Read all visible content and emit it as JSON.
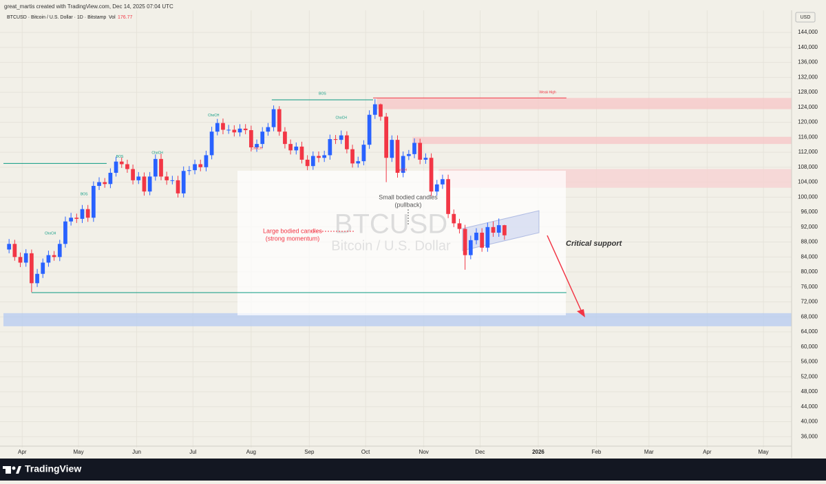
{
  "header": {
    "credit": "great_martis created with TradingView.com, Dec 14, 2025 07:04 UTC",
    "symbol": "BTCUSD · Bitcoin / U.S. Dollar · 1D · Bitstamp",
    "vol_label": "Vol",
    "vol_value": 176.77,
    "currency": "USD"
  },
  "footer": {
    "brand": "TradingView"
  },
  "chart_data": {
    "type": "candlestick",
    "watermark": [
      "BTCUSD",
      "Bitcoin / U.S. Dollar"
    ],
    "up_color": "#2962ff",
    "down_color": "#f23645",
    "x": [
      3,
      6,
      9,
      12,
      15,
      18,
      21,
      24,
      27,
      30,
      33,
      36,
      39,
      42,
      45,
      48,
      51,
      54,
      57,
      60,
      63,
      66,
      69,
      72,
      75,
      78,
      81,
      84,
      87,
      90,
      93,
      96,
      99,
      102,
      105,
      108,
      111,
      114,
      117,
      120,
      123,
      126,
      129,
      132,
      135,
      138,
      141,
      144,
      147,
      150,
      153,
      156,
      159,
      162,
      165,
      168,
      171,
      174,
      177,
      180,
      183,
      186,
      189,
      192,
      195,
      198,
      201,
      204,
      207,
      210,
      213,
      216,
      219,
      222,
      225,
      228,
      231,
      234,
      237,
      240,
      243,
      246,
      249,
      252,
      255,
      258,
      261,
      264,
      267
    ],
    "open": [
      86000,
      87500,
      84000,
      82500,
      85000,
      77000,
      79500,
      82500,
      84500,
      84000,
      87500,
      93500,
      94500,
      94200,
      96800,
      94500,
      103000,
      104000,
      103500,
      106500,
      109500,
      108800,
      107500,
      104500,
      105500,
      101500,
      105500,
      110200,
      105500,
      104500,
      104500,
      101000,
      107000,
      107200,
      108800,
      108000,
      111200,
      117500,
      119800,
      118000,
      118000,
      117300,
      118300,
      117900,
      113300,
      114200,
      117500,
      118700,
      123500,
      117500,
      114200,
      112500,
      113500,
      110000,
      108300,
      111000,
      110500,
      111200,
      115500,
      115300,
      116500,
      112800,
      109000,
      109600,
      114000,
      122000,
      124800,
      121500,
      110500,
      115300,
      106500,
      111000,
      111500,
      114500,
      110000,
      110500,
      101500,
      103400,
      104800,
      95500,
      93000,
      91500,
      84500,
      88500,
      90500,
      86500,
      92000,
      90500,
      92500
    ],
    "high": [
      88800,
      88600,
      85200,
      86100,
      86000,
      80800,
      83600,
      85700,
      85600,
      88600,
      94800,
      95800,
      95600,
      97900,
      97900,
      104200,
      105300,
      105100,
      107700,
      110800,
      110600,
      110000,
      108700,
      106700,
      106600,
      106700,
      111400,
      111600,
      106800,
      105700,
      105700,
      108200,
      108300,
      110000,
      110000,
      112400,
      118800,
      120900,
      121000,
      119300,
      119200,
      119500,
      119500,
      119100,
      115400,
      118700,
      119800,
      124500,
      124300,
      118700,
      115400,
      114600,
      114800,
      111200,
      112200,
      112200,
      112400,
      116700,
      116600,
      117800,
      117600,
      114000,
      110800,
      115200,
      123200,
      126200,
      125000,
      122500,
      116500,
      116500,
      112200,
      112600,
      115700,
      115600,
      111700,
      111700,
      104600,
      106000,
      106000,
      96700,
      94200,
      92600,
      89700,
      91700,
      91700,
      93200,
      93500,
      94300,
      92600
    ],
    "low": [
      85000,
      83000,
      81300,
      81400,
      74600,
      76000,
      78400,
      81400,
      83000,
      82900,
      86500,
      92400,
      93100,
      93100,
      93400,
      93400,
      101900,
      102500,
      102400,
      105500,
      107800,
      106500,
      103400,
      103500,
      100400,
      100500,
      104400,
      104500,
      103300,
      103400,
      99900,
      99900,
      105900,
      106100,
      106900,
      106900,
      110100,
      116500,
      116800,
      116900,
      116200,
      116200,
      116800,
      112200,
      112100,
      113100,
      116400,
      117600,
      116400,
      113000,
      111400,
      111400,
      109000,
      107200,
      107300,
      109300,
      109400,
      110000,
      114200,
      114200,
      111700,
      107900,
      107900,
      108500,
      112900,
      120900,
      120400,
      104000,
      109400,
      105200,
      105300,
      109900,
      110400,
      108800,
      108900,
      100300,
      100400,
      102200,
      94400,
      92000,
      90300,
      80600,
      83400,
      87400,
      85400,
      85400,
      89400,
      89400,
      88600
    ],
    "close": [
      87500,
      84000,
      82500,
      85000,
      77000,
      79500,
      82500,
      84500,
      84000,
      87500,
      93500,
      94500,
      94200,
      96800,
      94500,
      103000,
      104000,
      103500,
      106500,
      109500,
      108800,
      107500,
      104500,
      105500,
      101500,
      105500,
      110200,
      105500,
      104500,
      104500,
      101000,
      107000,
      107200,
      108800,
      108000,
      111200,
      117500,
      119800,
      118000,
      118000,
      117300,
      118300,
      117900,
      113300,
      114200,
      117500,
      118700,
      123500,
      117500,
      114200,
      112500,
      113500,
      110000,
      108300,
      111000,
      110500,
      111200,
      115500,
      115300,
      116500,
      112800,
      109000,
      109600,
      114000,
      122000,
      124800,
      121500,
      110500,
      115300,
      106500,
      111000,
      111500,
      114500,
      110000,
      110500,
      101500,
      103400,
      104800,
      95500,
      93000,
      91500,
      84500,
      88500,
      90500,
      86500,
      92000,
      90500,
      92500,
      89800
    ],
    "xlim": [
      0,
      420
    ],
    "xticks": [
      {
        "value": 10,
        "label": "Apr"
      },
      {
        "value": 40,
        "label": "May"
      },
      {
        "value": 71,
        "label": "Jun"
      },
      {
        "value": 101,
        "label": "Jul"
      },
      {
        "value": 132,
        "label": "Aug"
      },
      {
        "value": 163,
        "label": "Sep"
      },
      {
        "value": 193,
        "label": "Oct"
      },
      {
        "value": 224,
        "label": "Nov"
      },
      {
        "value": 254,
        "label": "Dec"
      },
      {
        "value": 285,
        "label": "2026"
      },
      {
        "value": 316,
        "label": "Feb"
      },
      {
        "value": 344,
        "label": "Mar"
      },
      {
        "value": 375,
        "label": "Apr"
      },
      {
        "value": 405,
        "label": "May"
      }
    ],
    "ylim": [
      33100,
      146600
    ],
    "yticks": [
      {
        "value": 36000,
        "label": "36,000"
      },
      {
        "value": 40000,
        "label": "40,000"
      },
      {
        "value": 44000,
        "label": "44,000"
      },
      {
        "value": 48000,
        "label": "48,000"
      },
      {
        "value": 52000,
        "label": "52,000"
      },
      {
        "value": 56000,
        "label": "56,000"
      },
      {
        "value": 60000,
        "label": "60,000"
      },
      {
        "value": 64000,
        "label": "64,000"
      },
      {
        "value": 68000,
        "label": "68,000"
      },
      {
        "value": 72000,
        "label": "72,000"
      },
      {
        "value": 76000,
        "label": "76,000"
      },
      {
        "value": 80000,
        "label": "80,000"
      },
      {
        "value": 84000,
        "label": "84,000"
      },
      {
        "value": 88000,
        "label": "88,000"
      },
      {
        "value": 92000,
        "label": "92,000"
      },
      {
        "value": 96000,
        "label": "96,000"
      },
      {
        "value": 100000,
        "label": "100,000"
      },
      {
        "value": 104000,
        "label": "104,000"
      },
      {
        "value": 108000,
        "label": "108,000"
      },
      {
        "value": 112000,
        "label": "112,000"
      },
      {
        "value": 116000,
        "label": "116,000"
      },
      {
        "value": 120000,
        "label": "120,000"
      },
      {
        "value": 124000,
        "label": "124,000"
      },
      {
        "value": 128000,
        "label": "128,000"
      },
      {
        "value": 132000,
        "label": "132,000"
      },
      {
        "value": 136000,
        "label": "136,000"
      },
      {
        "value": 140000,
        "label": "140,000"
      },
      {
        "value": 144000,
        "label": "144,000"
      }
    ],
    "grid": true,
    "zones": [
      {
        "from": 199,
        "low": 123500,
        "high": 126500,
        "color": "#f6c8c8"
      },
      {
        "from": 218,
        "low": 114200,
        "high": 116100,
        "color": "#f6c8c8"
      },
      {
        "from": 232,
        "low": 102500,
        "high": 107500,
        "color": "#f6d2d2"
      },
      {
        "from": 0,
        "low": 65500,
        "high": 69000,
        "color": "#b9cdf0"
      }
    ],
    "levels": [
      {
        "y": 126500,
        "from": 197,
        "to": 300,
        "color": "#f23645"
      },
      {
        "y": 126000,
        "from": 143,
        "to": 197,
        "color": "#089981"
      },
      {
        "y": 109000,
        "from": 0,
        "to": 55,
        "color": "#089981"
      },
      {
        "y": 74500,
        "from": 15,
        "to": 300,
        "color": "#089981"
      }
    ],
    "labels": [
      {
        "text": "Weak High",
        "x": 290,
        "y": 128000,
        "color": "#f23645"
      },
      {
        "text": "BOS",
        "x": 170,
        "y": 127600,
        "color": "#089981"
      },
      {
        "text": "ChoCH",
        "x": 112,
        "y": 121800,
        "color": "#089981"
      },
      {
        "text": "ChoCH",
        "x": 180,
        "y": 121200,
        "color": "#089981"
      },
      {
        "text": "ChoCH",
        "x": 135,
        "y": 113000,
        "color": "#f23645"
      },
      {
        "text": "ChoCH",
        "x": 82,
        "y": 111800,
        "color": "#089981"
      },
      {
        "text": "BOS",
        "x": 62,
        "y": 110800,
        "color": "#089981"
      },
      {
        "text": "BOS",
        "x": 43,
        "y": 100800,
        "color": "#089981"
      },
      {
        "text": "ChoCH",
        "x": 25,
        "y": 90300,
        "color": "#089981"
      },
      {
        "text": "ChoCH",
        "x": 212,
        "y": 107200,
        "color": "#f23645"
      }
    ],
    "annotations": [
      "Small bodied candles",
      "(pullback)",
      "Large bodied candles",
      "(strong momentum)",
      "Critical support"
    ]
  }
}
